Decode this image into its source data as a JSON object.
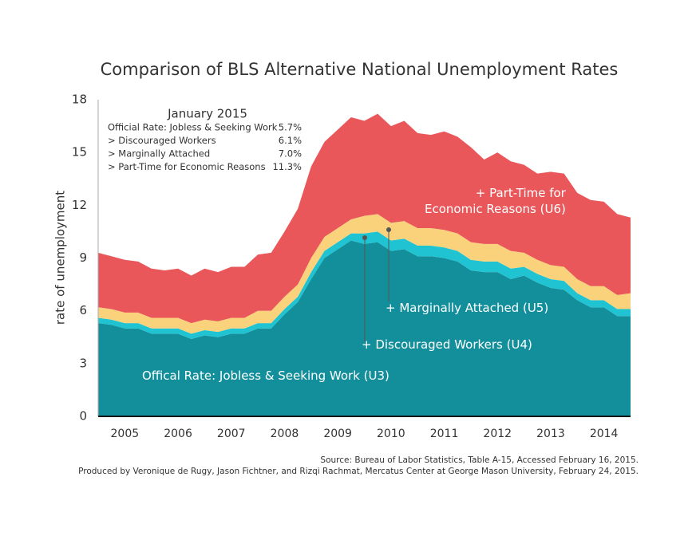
{
  "chart_data": {
    "type": "stacked_area",
    "title": "Comparison of BLS Alternative National Unemployment Rates",
    "ylabel": "rate of unemployment",
    "x": [
      2005,
      2005.25,
      2005.5,
      2005.75,
      2006,
      2006.25,
      2006.5,
      2006.75,
      2007,
      2007.25,
      2007.5,
      2007.75,
      2008,
      2008.25,
      2008.5,
      2008.75,
      2009,
      2009.25,
      2009.5,
      2009.75,
      2010,
      2010.25,
      2010.5,
      2010.75,
      2011,
      2011.25,
      2011.5,
      2011.75,
      2012,
      2012.25,
      2012.5,
      2012.75,
      2013,
      2013.25,
      2013.5,
      2013.75,
      2014,
      2014.25,
      2014.5,
      2014.75,
      2015
    ],
    "xlim": [
      2005,
      2015
    ],
    "xticks": [
      2005,
      2006,
      2007,
      2008,
      2009,
      2010,
      2011,
      2012,
      2013,
      2014
    ],
    "ylim": [
      0,
      18
    ],
    "yticks": [
      0,
      3,
      6,
      9,
      12,
      15,
      18
    ],
    "series": [
      {
        "name": "Offical Rate: Jobless & Seeking Work (U3)",
        "color": "#138f9b",
        "values": [
          5.3,
          5.2,
          5.0,
          5.0,
          4.7,
          4.7,
          4.7,
          4.4,
          4.6,
          4.5,
          4.7,
          4.7,
          5.0,
          5.0,
          5.8,
          6.5,
          7.8,
          9.0,
          9.5,
          10.0,
          9.8,
          9.9,
          9.4,
          9.5,
          9.1,
          9.1,
          9.0,
          8.8,
          8.3,
          8.2,
          8.2,
          7.8,
          8.0,
          7.6,
          7.3,
          7.2,
          6.6,
          6.2,
          6.2,
          5.7,
          5.7
        ]
      },
      {
        "name": "+ Discouraged Workers (U4)",
        "color": "#1fc3d2",
        "values": [
          0.3,
          0.3,
          0.3,
          0.3,
          0.3,
          0.3,
          0.3,
          0.3,
          0.3,
          0.3,
          0.3,
          0.3,
          0.3,
          0.3,
          0.3,
          0.3,
          0.4,
          0.4,
          0.4,
          0.4,
          0.6,
          0.6,
          0.6,
          0.6,
          0.6,
          0.6,
          0.6,
          0.6,
          0.6,
          0.6,
          0.6,
          0.6,
          0.5,
          0.5,
          0.5,
          0.5,
          0.4,
          0.4,
          0.4,
          0.4,
          0.4
        ]
      },
      {
        "name": "+ Marginally Attached (U5)",
        "color": "#fbd27c",
        "values": [
          0.6,
          0.6,
          0.6,
          0.6,
          0.6,
          0.6,
          0.6,
          0.6,
          0.6,
          0.6,
          0.6,
          0.6,
          0.7,
          0.7,
          0.7,
          0.7,
          0.8,
          0.8,
          0.8,
          0.8,
          1.0,
          1.0,
          1.0,
          1.0,
          1.0,
          1.0,
          1.0,
          1.0,
          1.0,
          1.0,
          1.0,
          1.0,
          0.8,
          0.8,
          0.8,
          0.8,
          0.8,
          0.8,
          0.8,
          0.8,
          0.9
        ]
      },
      {
        "name": "+ Part-Time for\nEconomic Reasons (U6)",
        "color": "#e9575a",
        "values": [
          3.1,
          3.0,
          3.0,
          2.9,
          2.8,
          2.7,
          2.8,
          2.7,
          2.9,
          2.8,
          2.9,
          2.9,
          3.2,
          3.3,
          3.7,
          4.3,
          5.2,
          5.4,
          5.6,
          5.8,
          5.4,
          5.7,
          5.5,
          5.7,
          5.4,
          5.3,
          5.6,
          5.5,
          5.4,
          4.8,
          5.2,
          5.1,
          5.0,
          4.9,
          5.3,
          5.3,
          4.9,
          4.9,
          4.8,
          4.6,
          4.3
        ]
      }
    ],
    "summary": {
      "title": "January 2015",
      "labels": [
        "Official Rate: Jobless & Seeking Work",
        "> Discouraged Workers",
        "> Marginally Attached",
        "> Part-Time for Economic Reasons"
      ],
      "values": [
        5.7,
        6.1,
        7.0,
        11.3
      ],
      "value_labels": [
        "5.7%",
        "6.1%",
        "7.0%",
        "11.3%"
      ]
    },
    "source": [
      "Source: Bureau of Labor Statistics, Table A-15, Accessed February 16, 2015.",
      "Produced by Veronique de Rugy, Jason Fichtner, and Rizqi Rachmat, Mercatus Center at George Mason University, February 24, 2015."
    ]
  }
}
